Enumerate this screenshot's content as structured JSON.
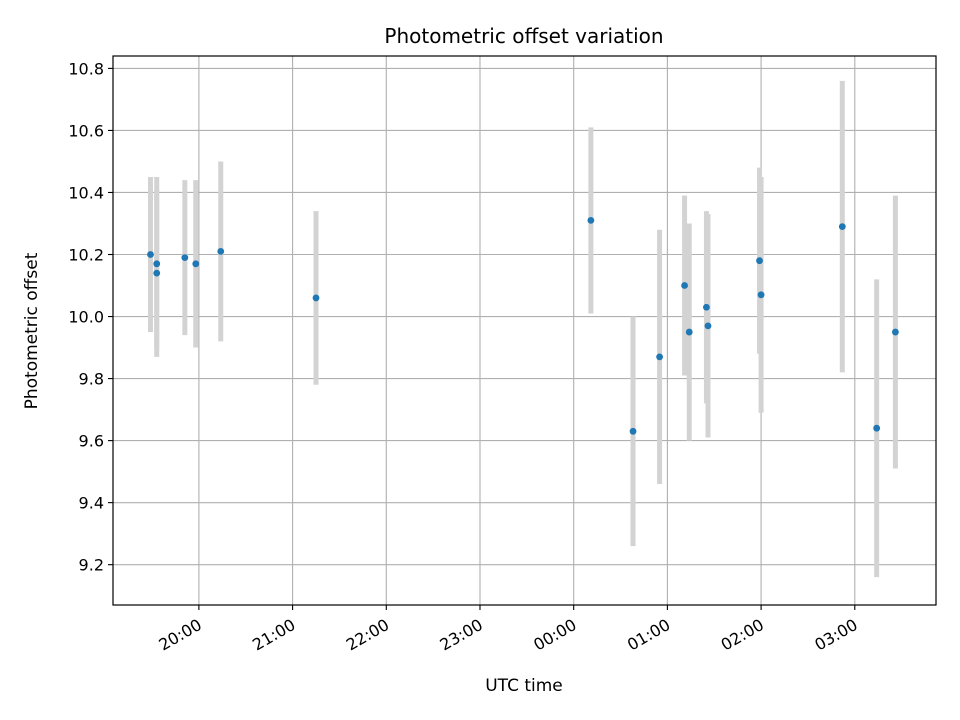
{
  "chart_data": {
    "type": "scatter",
    "title": "Photometric offset variation",
    "xlabel": "UTC time",
    "ylabel": "Photometric offset",
    "grid": true,
    "xlim": [
      "19:05",
      "27:52"
    ],
    "ylim": [
      9.07,
      10.84
    ],
    "x_ticks": [
      "20:00",
      "21:00",
      "22:00",
      "23:00",
      "00:00",
      "01:00",
      "02:00",
      "03:00"
    ],
    "y_ticks": [
      "9.2",
      "9.4",
      "9.6",
      "9.8",
      "10.0",
      "10.2",
      "10.4",
      "10.6",
      "10.8"
    ],
    "point_color": "#1f77b4",
    "errorbar_color": "#d3d3d3",
    "points": [
      {
        "time": "19:29",
        "y": 10.2,
        "err": 0.25
      },
      {
        "time": "19:33",
        "y": 10.17,
        "err": 0.28
      },
      {
        "time": "19:33",
        "y": 10.14,
        "err": 0.27
      },
      {
        "time": "19:51",
        "y": 10.19,
        "err": 0.25
      },
      {
        "time": "19:58",
        "y": 10.17,
        "err": 0.27
      },
      {
        "time": "20:14",
        "y": 10.21,
        "err": 0.29
      },
      {
        "time": "21:15",
        "y": 10.06,
        "err": 0.28
      },
      {
        "time": "00:11",
        "y": 10.31,
        "err": 0.3
      },
      {
        "time": "00:38",
        "y": 9.63,
        "err": 0.37
      },
      {
        "time": "00:55",
        "y": 9.87,
        "err": 0.41
      },
      {
        "time": "01:11",
        "y": 10.1,
        "err": 0.29
      },
      {
        "time": "01:14",
        "y": 9.95,
        "err": 0.35
      },
      {
        "time": "01:25",
        "y": 10.03,
        "err": 0.31
      },
      {
        "time": "01:26",
        "y": 9.97,
        "err": 0.36
      },
      {
        "time": "01:59",
        "y": 10.18,
        "err": 0.3
      },
      {
        "time": "02:00",
        "y": 10.07,
        "err": 0.38
      },
      {
        "time": "02:52",
        "y": 10.29,
        "err": 0.47
      },
      {
        "time": "03:14",
        "y": 9.64,
        "err": 0.48
      },
      {
        "time": "03:26",
        "y": 9.95,
        "err": 0.44
      }
    ]
  }
}
